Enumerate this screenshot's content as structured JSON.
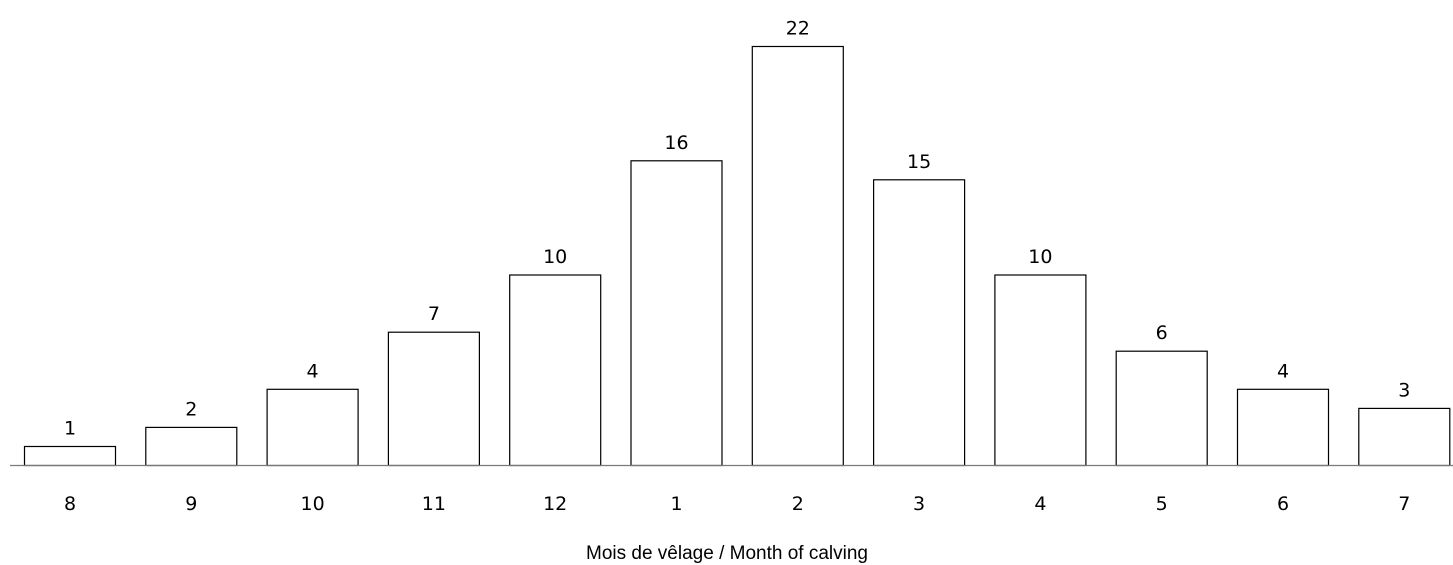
{
  "chart_data": {
    "type": "bar",
    "title": "",
    "xlabel": "Mois de vêlage / Month of calving",
    "ylabel": "",
    "categories": [
      "8",
      "9",
      "10",
      "11",
      "12",
      "1",
      "2",
      "3",
      "4",
      "5",
      "6",
      "7"
    ],
    "values": [
      1,
      2,
      4,
      7,
      10,
      16,
      22,
      15,
      10,
      6,
      4,
      3
    ],
    "data_labels": [
      "1",
      "2",
      "4",
      "7",
      "10",
      "16",
      "22",
      "15",
      "10",
      "6",
      "4",
      "3"
    ],
    "ylim": [
      0,
      22
    ],
    "grid": false,
    "legend": "none",
    "colors": {
      "bar_fill": "#ffffff",
      "bar_stroke": "#000000",
      "axis": "#7a7a7a",
      "text": "#000000"
    }
  }
}
